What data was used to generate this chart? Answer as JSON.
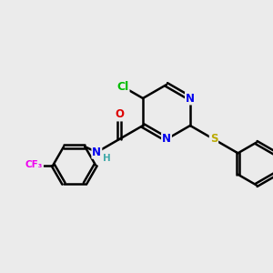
{
  "background_color": "#ebebeb",
  "bond_color": "#000000",
  "bond_width": 1.8,
  "atom_colors": {
    "N": "#0000ee",
    "O": "#dd0000",
    "Cl": "#00bb00",
    "S": "#bbaa00",
    "F": "#ee00ee",
    "H": "#44aaaa",
    "C": "#000000"
  },
  "font_size": 8.5,
  "fig_size": [
    3.0,
    3.0
  ],
  "dpi": 100
}
